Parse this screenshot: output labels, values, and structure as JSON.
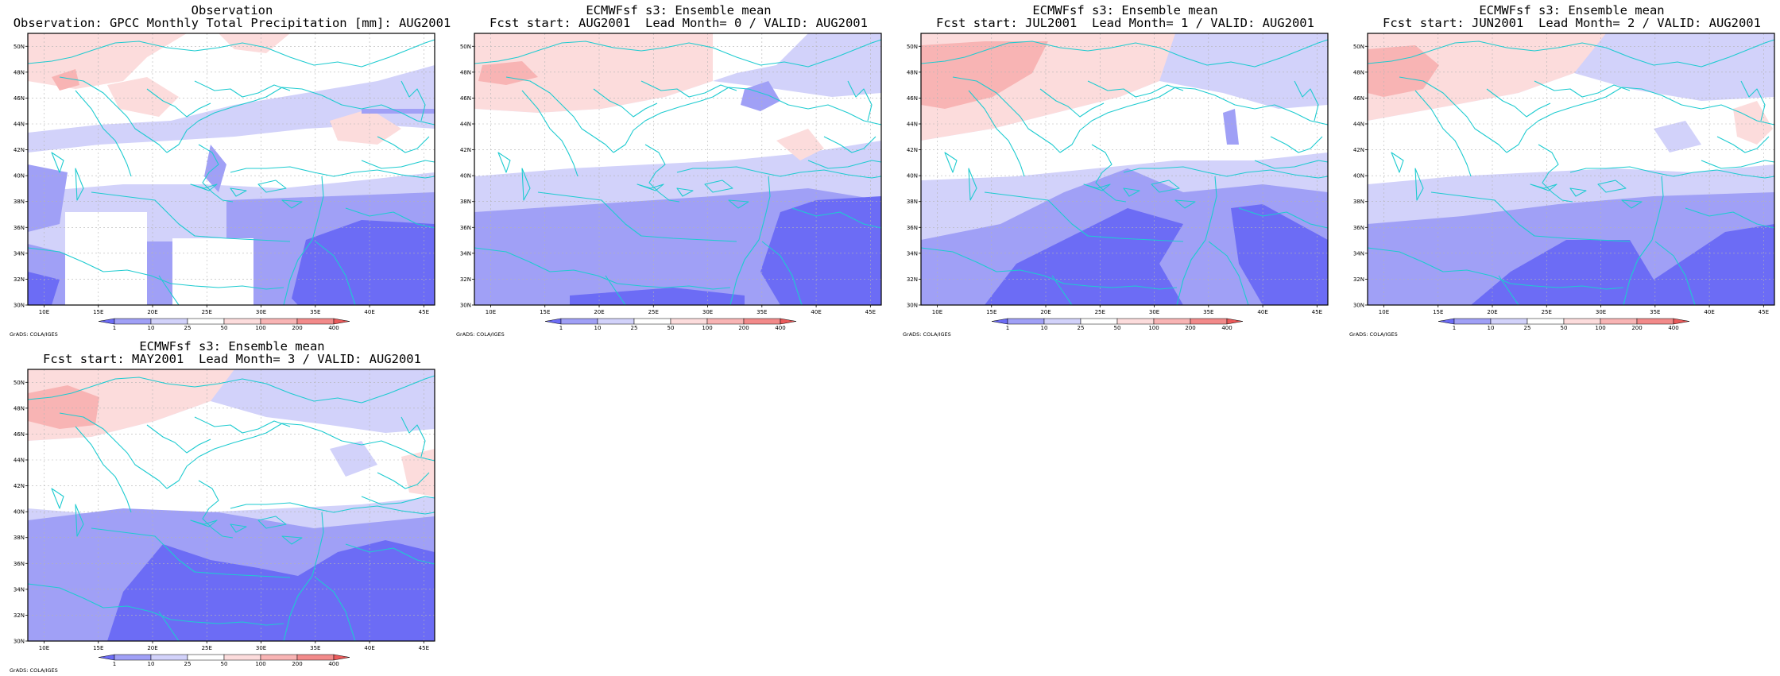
{
  "colors": {
    "bin_below_1": "#6c6cf5",
    "bin_1_10": "#a0a0f6",
    "bin_10_25": "#d2d2fa",
    "bin_25_50": "#ffffff",
    "bin_50_100": "#fcdcdc",
    "bin_100_200": "#f8b4b4",
    "bin_200_400": "#f28a8a",
    "bin_above_400": "#ea5a5a",
    "coastline": "#1ecbd0",
    "grid": "#b4b4b4"
  },
  "axes": {
    "lon_ticks": [
      "10E",
      "15E",
      "20E",
      "25E",
      "30E",
      "35E",
      "40E",
      "45E"
    ],
    "lat_ticks": [
      "30N",
      "32N",
      "34N",
      "36N",
      "38N",
      "40N",
      "42N",
      "44N",
      "46N",
      "48N",
      "50N"
    ]
  },
  "colorbar": {
    "labels": [
      "1",
      "10",
      "25",
      "50",
      "100",
      "200",
      "400"
    ]
  },
  "credit": "GrADS: COLA/IGES",
  "panels": [
    {
      "id": "obs",
      "title1": "Observation",
      "title2": "Observation: GPCC Monthly Total Precipitation [mm]: AUG2001"
    },
    {
      "id": "lead0",
      "title1": "ECMWFsf s3: Ensemble mean",
      "title2": "Fcst start: AUG2001  Lead Month= 0 / VALID: AUG2001"
    },
    {
      "id": "lead1",
      "title1": "ECMWFsf s3: Ensemble mean",
      "title2": "Fcst start: JUL2001  Lead Month= 1 / VALID: AUG2001"
    },
    {
      "id": "lead2",
      "title1": "ECMWFsf s3: Ensemble mean",
      "title2": "Fcst start: JUN2001  Lead Month= 2 / VALID: AUG2001"
    },
    {
      "id": "lead3",
      "title1": "ECMWFsf s3: Ensemble mean",
      "title2": "Fcst start: MAY2001  Lead Month= 3 / VALID: AUG2001"
    }
  ]
}
